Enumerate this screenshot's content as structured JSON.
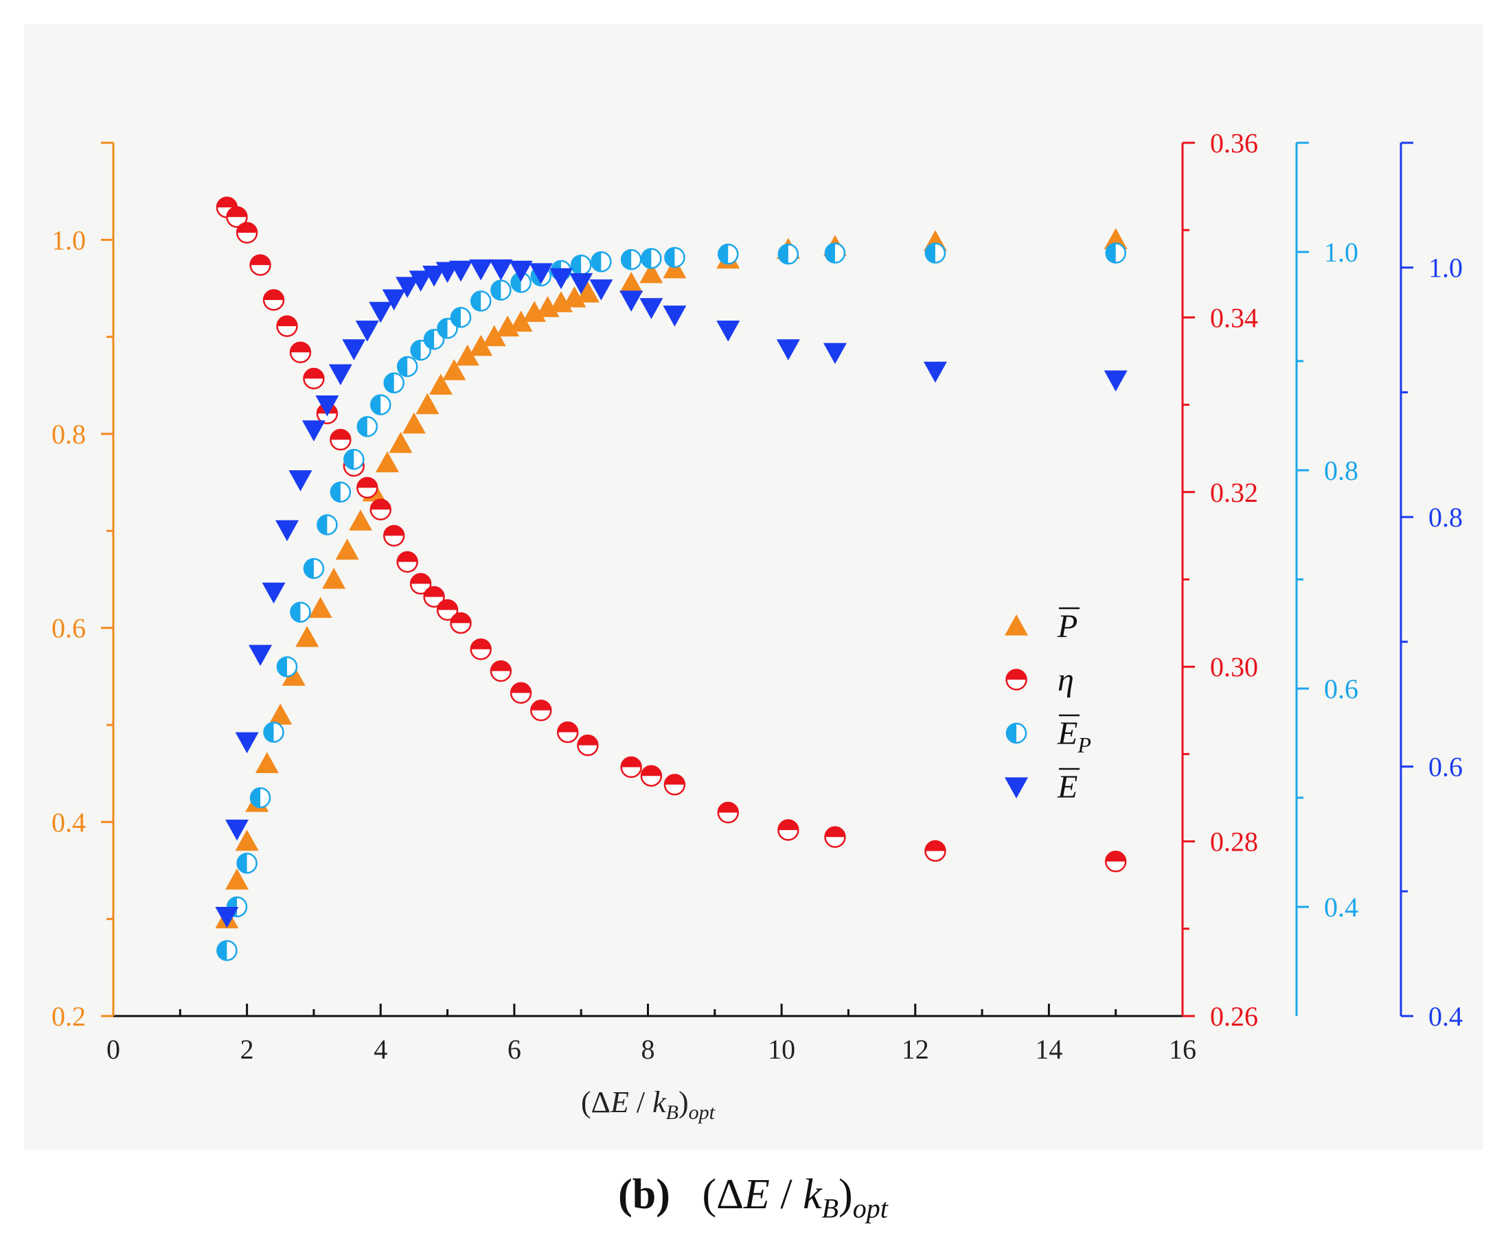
{
  "caption": {
    "label": "(b)",
    "text": "(ΔE / k_B)_opt"
  },
  "chart_data": {
    "type": "scatter",
    "title": "",
    "xlabel": "(ΔE / k_B)_opt",
    "xlim": [
      0,
      16
    ],
    "xticks": [
      "0",
      "2",
      "4",
      "6",
      "8",
      "10",
      "12",
      "14",
      "16"
    ],
    "axes": [
      {
        "id": "P",
        "color": "#f28a1e",
        "side": "left",
        "ylim": [
          0.2,
          1.1
        ],
        "ticks": [
          "0.2",
          "0.4",
          "0.6",
          "0.8",
          "1.0"
        ]
      },
      {
        "id": "eta",
        "color": "#e8131b",
        "side": "right",
        "ylim": [
          0.26,
          0.36
        ],
        "ticks": [
          "0.26",
          "0.28",
          "0.30",
          "0.32",
          "0.34",
          "0.36"
        ]
      },
      {
        "id": "EP",
        "color": "#1aa6ea",
        "side": "right",
        "ylim": [
          0.3,
          1.1
        ],
        "ticks": [
          "0.4",
          "0.6",
          "0.8",
          "1.0"
        ]
      },
      {
        "id": "E",
        "color": "#1a3cf0",
        "side": "right",
        "ylim": [
          0.4,
          1.1
        ],
        "ticks": [
          "0.4",
          "0.6",
          "0.8",
          "1.0"
        ]
      }
    ],
    "series": [
      {
        "name": "P̄",
        "axis": "P",
        "color": "#f28a1e",
        "marker": "triangle-up",
        "x": [
          1.7,
          1.85,
          2.0,
          2.15,
          2.3,
          2.5,
          2.7,
          2.9,
          3.1,
          3.3,
          3.5,
          3.7,
          3.9,
          4.1,
          4.3,
          4.5,
          4.7,
          4.9,
          5.1,
          5.3,
          5.5,
          5.7,
          5.9,
          6.1,
          6.3,
          6.5,
          6.7,
          6.9,
          7.1,
          7.75,
          8.05,
          8.4,
          9.2,
          10.1,
          10.8,
          12.3,
          15.0
        ],
        "y": [
          0.3,
          0.34,
          0.38,
          0.42,
          0.46,
          0.51,
          0.55,
          0.59,
          0.62,
          0.65,
          0.68,
          0.71,
          0.74,
          0.77,
          0.79,
          0.81,
          0.83,
          0.85,
          0.865,
          0.88,
          0.89,
          0.9,
          0.91,
          0.915,
          0.925,
          0.93,
          0.935,
          0.94,
          0.945,
          0.955,
          0.965,
          0.97,
          0.98,
          0.99,
          0.993,
          0.998,
          1.0
        ]
      },
      {
        "name": "η",
        "axis": "eta",
        "color": "#e8131b",
        "marker": "half-circle",
        "x": [
          1.7,
          1.85,
          2.0,
          2.2,
          2.4,
          2.6,
          2.8,
          3.0,
          3.2,
          3.4,
          3.6,
          3.8,
          4.0,
          4.2,
          4.4,
          4.6,
          4.8,
          5.0,
          5.2,
          5.5,
          5.8,
          6.1,
          6.4,
          6.8,
          7.1,
          7.75,
          8.05,
          8.4,
          9.2,
          10.1,
          10.8,
          12.3,
          15.0
        ],
        "y": [
          0.3526,
          0.3515,
          0.3497,
          0.346,
          0.342,
          0.339,
          0.336,
          0.333,
          0.329,
          0.326,
          0.323,
          0.3205,
          0.318,
          0.315,
          0.312,
          0.3095,
          0.308,
          0.3065,
          0.305,
          0.302,
          0.2995,
          0.297,
          0.295,
          0.2925,
          0.291,
          0.2885,
          0.2875,
          0.2865,
          0.2833,
          0.2813,
          0.2805,
          0.2789,
          0.2777
        ]
      },
      {
        "name": "Ē_P",
        "axis": "EP",
        "color": "#1aa6ea",
        "marker": "half-circle",
        "x": [
          1.7,
          1.85,
          2.0,
          2.2,
          2.4,
          2.6,
          2.8,
          3.0,
          3.2,
          3.4,
          3.6,
          3.8,
          4.0,
          4.2,
          4.4,
          4.6,
          4.8,
          5.0,
          5.2,
          5.5,
          5.8,
          6.1,
          6.4,
          6.7,
          7.0,
          7.3,
          7.75,
          8.05,
          8.4,
          9.2,
          10.1,
          10.8,
          12.3,
          15.0
        ],
        "y": [
          0.36,
          0.4,
          0.44,
          0.5,
          0.56,
          0.62,
          0.67,
          0.71,
          0.75,
          0.78,
          0.81,
          0.84,
          0.86,
          0.88,
          0.895,
          0.91,
          0.92,
          0.93,
          0.94,
          0.955,
          0.965,
          0.972,
          0.978,
          0.983,
          0.988,
          0.991,
          0.993,
          0.994,
          0.995,
          0.998,
          0.998,
          0.999,
          0.999,
          0.999
        ]
      },
      {
        "name": "Ē",
        "axis": "E",
        "color": "#1a3cf0",
        "marker": "triangle-down",
        "x": [
          1.7,
          1.85,
          2.0,
          2.2,
          2.4,
          2.6,
          2.8,
          3.0,
          3.2,
          3.4,
          3.6,
          3.8,
          4.0,
          4.2,
          4.4,
          4.6,
          4.8,
          5.0,
          5.2,
          5.5,
          5.8,
          6.1,
          6.4,
          6.7,
          7.0,
          7.3,
          7.75,
          8.05,
          8.4,
          9.2,
          10.1,
          10.8,
          12.3,
          15.0
        ],
        "y": [
          0.48,
          0.55,
          0.62,
          0.69,
          0.74,
          0.79,
          0.83,
          0.87,
          0.89,
          0.915,
          0.935,
          0.95,
          0.965,
          0.975,
          0.985,
          0.99,
          0.994,
          0.997,
          0.998,
          0.999,
          0.999,
          0.998,
          0.996,
          0.992,
          0.988,
          0.983,
          0.974,
          0.968,
          0.962,
          0.95,
          0.935,
          0.932,
          0.917,
          0.91
        ]
      }
    ],
    "legend": {
      "position": "center-right",
      "entries": [
        {
          "label": "P",
          "overbar": true,
          "subscript": ""
        },
        {
          "label": "η",
          "overbar": false,
          "subscript": ""
        },
        {
          "label": "E",
          "overbar": true,
          "subscript": "P"
        },
        {
          "label": "E",
          "overbar": true,
          "subscript": ""
        }
      ]
    }
  }
}
